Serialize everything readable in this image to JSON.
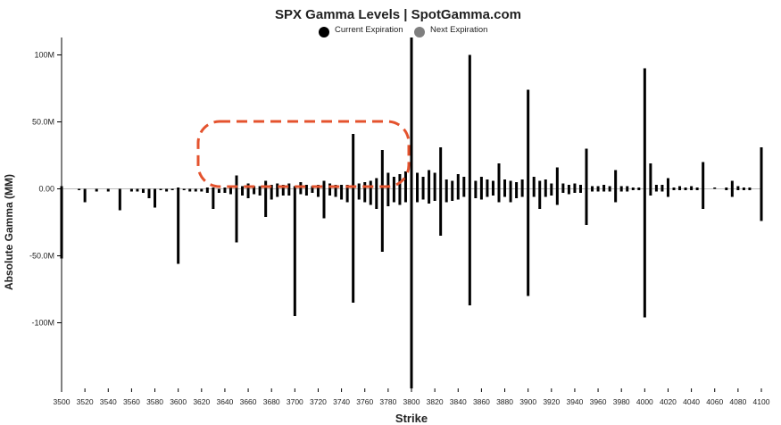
{
  "chart_data": {
    "type": "bar",
    "title": "SPX Gamma Levels | SpotGamma.com",
    "x_label": "Strike",
    "y_label": "Absolute Gamma (MM)",
    "x": [
      3500,
      3505,
      3510,
      3515,
      3520,
      3525,
      3530,
      3535,
      3540,
      3545,
      3550,
      3555,
      3560,
      3565,
      3570,
      3575,
      3580,
      3585,
      3590,
      3595,
      3600,
      3605,
      3610,
      3615,
      3620,
      3625,
      3630,
      3635,
      3640,
      3645,
      3650,
      3655,
      3660,
      3665,
      3670,
      3675,
      3680,
      3685,
      3690,
      3695,
      3700,
      3705,
      3710,
      3715,
      3720,
      3725,
      3730,
      3735,
      3740,
      3745,
      3750,
      3755,
      3760,
      3765,
      3770,
      3775,
      3780,
      3785,
      3790,
      3795,
      3800,
      3805,
      3810,
      3815,
      3820,
      3825,
      3830,
      3835,
      3840,
      3845,
      3850,
      3855,
      3860,
      3865,
      3870,
      3875,
      3880,
      3885,
      3890,
      3895,
      3900,
      3905,
      3910,
      3915,
      3920,
      3925,
      3930,
      3935,
      3940,
      3945,
      3950,
      3955,
      3960,
      3965,
      3970,
      3975,
      3980,
      3985,
      3990,
      3995,
      4000,
      4005,
      4010,
      4015,
      4020,
      4025,
      4030,
      4035,
      4040,
      4045,
      4050,
      4055,
      4060,
      4065,
      4070,
      4075,
      4080,
      4085,
      4090,
      4095,
      4100
    ],
    "series": [
      {
        "name": "Current Expiration",
        "color": "#000000",
        "values": [
          2,
          0,
          0,
          0,
          0,
          0,
          0,
          0,
          0,
          0,
          0,
          0,
          0,
          0,
          0,
          0,
          0,
          0,
          0,
          0,
          1,
          0,
          0,
          0,
          0,
          1,
          1,
          0,
          1,
          1,
          10,
          2,
          4,
          2,
          2,
          6,
          3,
          4,
          3,
          4,
          2,
          5,
          3,
          2,
          3,
          6,
          4,
          3,
          3,
          3,
          41,
          4,
          5,
          6,
          8,
          29,
          12,
          9,
          11,
          13,
          113,
          12,
          9,
          14,
          12,
          31,
          7,
          6,
          11,
          9,
          100,
          6,
          9,
          7,
          6,
          19,
          7,
          6,
          5,
          7,
          74,
          9,
          6,
          7,
          4,
          16,
          4,
          3,
          4,
          3,
          30,
          2,
          2,
          3,
          2,
          14,
          2,
          2,
          1,
          1,
          90,
          19,
          3,
          3,
          8,
          1,
          2,
          1,
          2,
          1,
          20,
          0,
          1,
          0,
          1,
          6,
          2,
          1,
          1,
          0,
          31
        ],
        "put_values": [
          -52,
          0,
          0,
          -1,
          -10,
          0,
          -2,
          0,
          -2,
          0,
          -16,
          0,
          -2,
          -2,
          -3,
          -7,
          -14,
          -1,
          -2,
          -1,
          -56,
          -1,
          -2,
          -2,
          -2,
          -3,
          -15,
          -3,
          -3,
          -4,
          -40,
          -5,
          -7,
          -4,
          -5,
          -21,
          -8,
          -6,
          -5,
          -5,
          -95,
          -4,
          -5,
          -3,
          -6,
          -22,
          -5,
          -6,
          -8,
          -10,
          -85,
          -8,
          -10,
          -12,
          -15,
          -47,
          -13,
          -10,
          -12,
          -10,
          -149,
          -10,
          -8,
          -11,
          -9,
          -35,
          -10,
          -9,
          -8,
          -6,
          -87,
          -7,
          -8,
          -6,
          -5,
          -10,
          -6,
          -10,
          -7,
          -6,
          -80,
          -6,
          -15,
          -6,
          -5,
          -12,
          -3,
          -4,
          -3,
          -3,
          -27,
          -2,
          -2,
          -2,
          -2,
          -10,
          -2,
          -2,
          -1,
          -1,
          -96,
          -5,
          -2,
          -2,
          -6,
          -1,
          -1,
          -1,
          -1,
          -1,
          -15,
          0,
          0,
          0,
          -1,
          -6,
          -1,
          -1,
          -1,
          0,
          -24
        ]
      },
      {
        "name": "Next Expiration",
        "color": "#7f7f7f"
      }
    ],
    "xlim": [
      3500,
      4100
    ],
    "xticks": [
      3500,
      3520,
      3540,
      3560,
      3580,
      3600,
      3620,
      3640,
      3660,
      3680,
      3700,
      3720,
      3740,
      3760,
      3780,
      3800,
      3820,
      3840,
      3860,
      3880,
      3900,
      3920,
      3940,
      3960,
      3980,
      4000,
      4020,
      4040,
      4060,
      4080,
      4100
    ],
    "ylim": [
      -149,
      113
    ],
    "yticks": [
      {
        "value": -100,
        "label": "-100M"
      },
      {
        "value": -50,
        "label": "-50.0M"
      },
      {
        "value": 0,
        "label": "0.00"
      },
      {
        "value": 50,
        "label": "50.0M"
      },
      {
        "value": 100,
        "label": "100M"
      }
    ]
  }
}
